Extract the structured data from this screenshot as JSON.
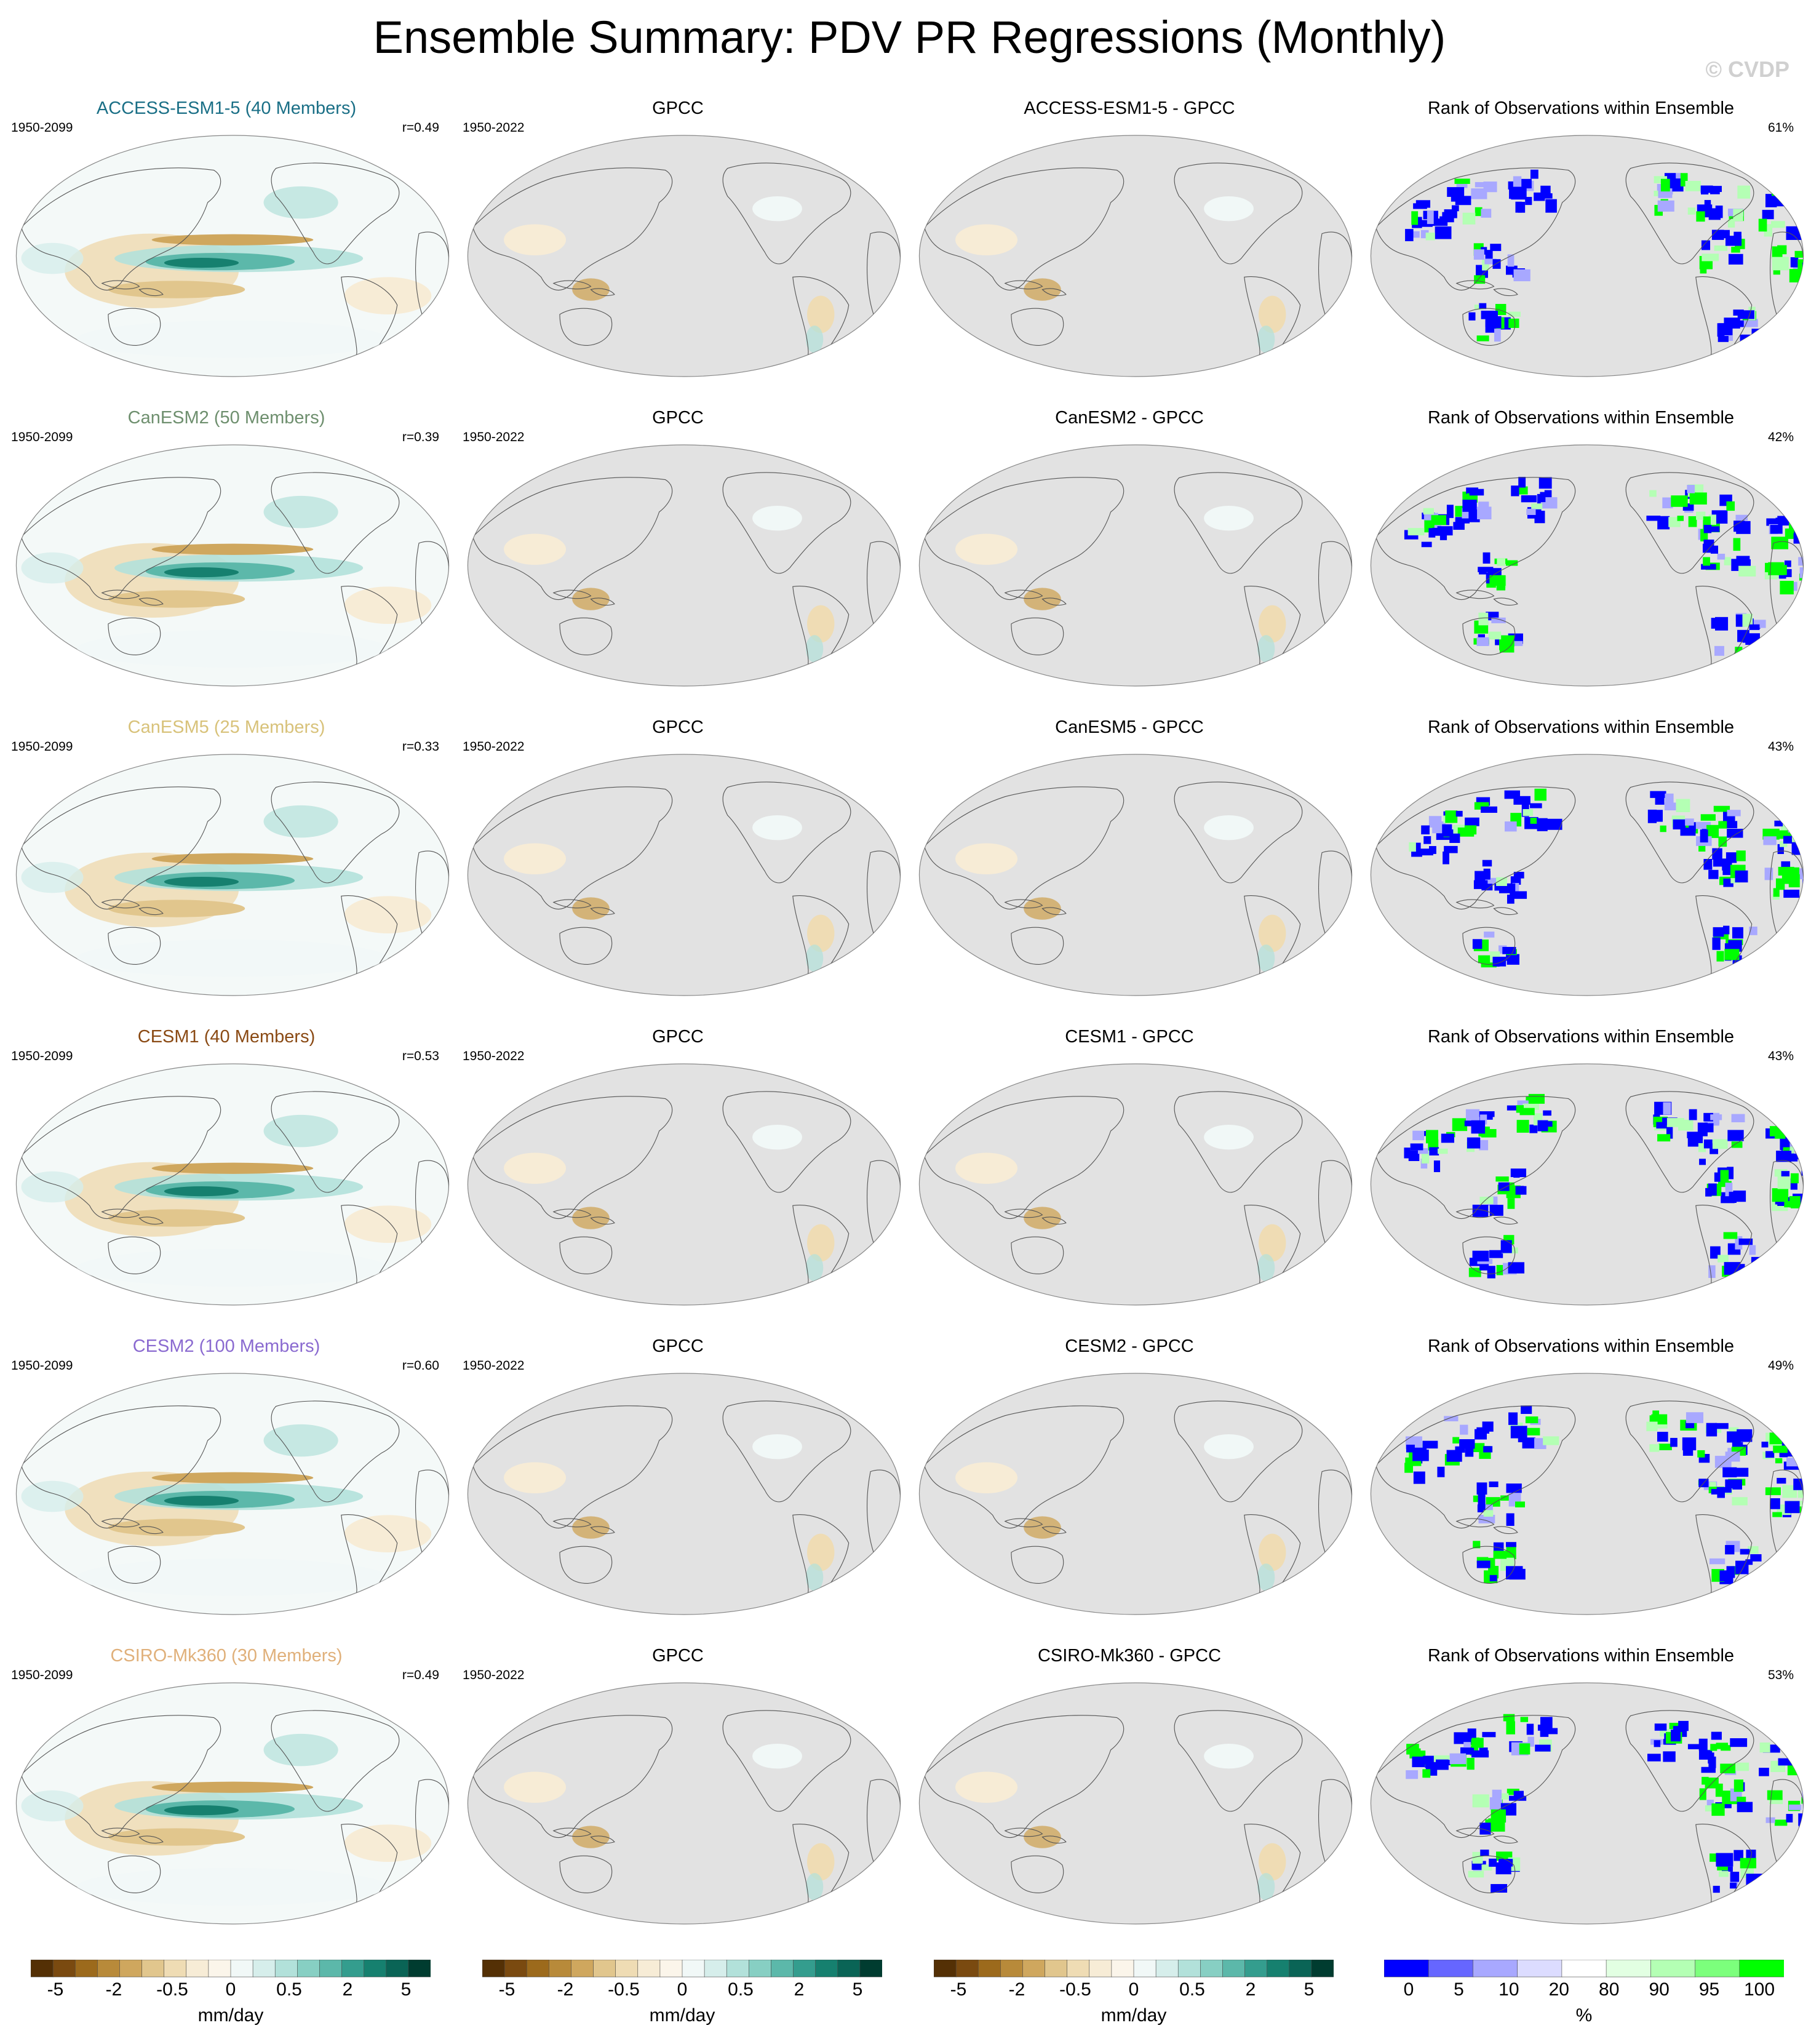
{
  "title": "Ensemble Summary: PDV PR Regressions (Monthly)",
  "watermark": "© CVDP",
  "colors": {
    "ocean_model": "#f4f9f8",
    "land_masked": "#e2e2e2",
    "coast": "#555555",
    "div_scale": [
      "#543005",
      "#7a4a10",
      "#9c6a1c",
      "#b88a3a",
      "#cfa75e",
      "#e1c68d",
      "#efdcb4",
      "#f7ecd6",
      "#fbf5ea",
      "#f1f8f7",
      "#d6eeeb",
      "#b2e1da",
      "#87cfc3",
      "#5cb8aa",
      "#349d8e",
      "#16806f",
      "#0a6456",
      "#003c30"
    ],
    "rank_scale": [
      "#0000ff",
      "#6666ff",
      "#a8a8ff",
      "#dcdcff",
      "#ffffff",
      "#e2ffe2",
      "#b4ffb4",
      "#7cff7c",
      "#00ff00"
    ]
  },
  "rows": [
    {
      "model": "ACCESS-ESM1-5 (40 Members)",
      "model_color": "#1a6f86",
      "years": "1950-2099",
      "r": "r=0.49",
      "obs_title": "GPCC",
      "obs_years": "1950-2022",
      "diff_title": "ACCESS-ESM1-5 - GPCC",
      "rank_title": "Rank of Observations within Ensemble",
      "rank_pct": "61%"
    },
    {
      "model": "CanESM2 (50 Members)",
      "model_color": "#6e8f6e",
      "years": "1950-2099",
      "r": "r=0.39",
      "obs_title": "GPCC",
      "obs_years": "1950-2022",
      "diff_title": "CanESM2 - GPCC",
      "rank_title": "Rank of Observations within Ensemble",
      "rank_pct": "42%"
    },
    {
      "model": "CanESM5 (25 Members)",
      "model_color": "#d8c27a",
      "years": "1950-2099",
      "r": "r=0.33",
      "obs_title": "GPCC",
      "obs_years": "1950-2022",
      "diff_title": "CanESM5 - GPCC",
      "rank_title": "Rank of Observations within Ensemble",
      "rank_pct": "43%"
    },
    {
      "model": "CESM1 (40 Members)",
      "model_color": "#8a4a14",
      "years": "1950-2099",
      "r": "r=0.53",
      "obs_title": "GPCC",
      "obs_years": "1950-2022",
      "diff_title": "CESM1 - GPCC",
      "rank_title": "Rank of Observations within Ensemble",
      "rank_pct": "43%"
    },
    {
      "model": "CESM2 (100 Members)",
      "model_color": "#8a6ad0",
      "years": "1950-2099",
      "r": "r=0.60",
      "obs_title": "GPCC",
      "obs_years": "1950-2022",
      "diff_title": "CESM2 - GPCC",
      "rank_title": "Rank of Observations within Ensemble",
      "rank_pct": "49%"
    },
    {
      "model": "CSIRO-Mk360 (30 Members)",
      "model_color": "#e0b07a",
      "years": "1950-2099",
      "r": "r=0.49",
      "obs_title": "GPCC",
      "obs_years": "1950-2022",
      "diff_title": "CSIRO-Mk360 - GPCC",
      "rank_title": "Rank of Observations within Ensemble",
      "rank_pct": "53%"
    }
  ],
  "colorbars": [
    {
      "ticks": [
        "-5",
        "-2",
        "-0.5",
        "0",
        "0.5",
        "2",
        "5"
      ],
      "unit": "mm/day"
    },
    {
      "ticks": [
        "-5",
        "-2",
        "-0.5",
        "0",
        "0.5",
        "2",
        "5"
      ],
      "unit": "mm/day"
    },
    {
      "ticks": [
        "-5",
        "-2",
        "-0.5",
        "0",
        "0.5",
        "2",
        "5"
      ],
      "unit": "mm/day"
    },
    {
      "ticks": [
        "0",
        "5",
        "10",
        "20",
        "80",
        "90",
        "95",
        "100"
      ],
      "unit": "%"
    }
  ]
}
